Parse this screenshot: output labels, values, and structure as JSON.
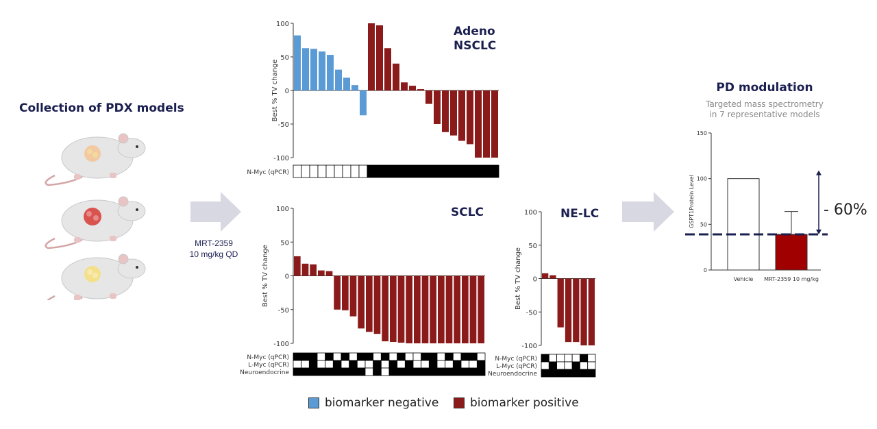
{
  "left": {
    "title": "Collection of PDX models",
    "treatment_line1": "MRT-2359",
    "treatment_line2": "10 mg/kg QD"
  },
  "legend": {
    "negative_label": "biomarker negative",
    "positive_label": "biomarker positive"
  },
  "colors": {
    "negative": "#5b9bd5",
    "positive": "#8b1a1a",
    "pd_bar": "#a00000",
    "arrow": "#d8d8e2",
    "header": "#1b1f4f",
    "dash": "#1b1f4f"
  },
  "pd": {
    "title": "PD modulation",
    "subtitle_line1": "Targeted mass spectrometry",
    "subtitle_line2": "in 7 representative models",
    "reduction_label": "- 60%"
  },
  "chart_data": [
    {
      "id": "adeno",
      "type": "bar",
      "title_line1": "Adeno",
      "title_line2": "NSCLC",
      "ylabel": "Best % TV change",
      "ylim": [
        -100,
        100
      ],
      "yticks": [
        100,
        50,
        0,
        -50,
        -100
      ],
      "ytick_labels": [
        "100",
        "50",
        "0",
        "-50",
        "-100"
      ],
      "values": [
        82,
        63,
        62,
        58,
        53,
        31,
        19,
        8,
        -37,
        100,
        97,
        63,
        40,
        12,
        7,
        2,
        -20,
        -50,
        -62,
        -67,
        -75,
        -80,
        -100,
        -100,
        -100
      ],
      "series_class": [
        "neg",
        "neg",
        "neg",
        "neg",
        "neg",
        "neg",
        "neg",
        "neg",
        "neg",
        "pos",
        "pos",
        "pos",
        "pos",
        "pos",
        "pos",
        "pos",
        "pos",
        "pos",
        "pos",
        "pos",
        "pos",
        "pos",
        "pos",
        "pos",
        "pos"
      ],
      "rows": [
        {
          "label": "N-Myc (qPCR)",
          "cells": [
            0,
            0,
            0,
            0,
            0,
            0,
            0,
            0,
            0,
            1,
            1,
            1,
            1,
            1,
            1,
            1,
            1,
            1,
            1,
            1,
            1,
            1,
            1,
            1,
            1
          ]
        }
      ]
    },
    {
      "id": "sclc",
      "type": "bar",
      "title_line1": "SCLC",
      "ylabel": "Best % TV change",
      "ylim": [
        -100,
        100
      ],
      "yticks": [
        100,
        50,
        0,
        -50,
        -100
      ],
      "ytick_labels": [
        "100",
        "50",
        "0",
        "-50",
        "-100"
      ],
      "values": [
        29,
        18,
        17,
        8,
        7,
        -50,
        -51,
        -60,
        -78,
        -83,
        -86,
        -97,
        -98,
        -99,
        -100,
        -100,
        -100,
        -100,
        -100,
        -100,
        -100,
        -100,
        -100,
        -100
      ],
      "series_class": [
        "pos",
        "pos",
        "pos",
        "pos",
        "pos",
        "pos",
        "pos",
        "pos",
        "pos",
        "pos",
        "pos",
        "pos",
        "pos",
        "pos",
        "pos",
        "pos",
        "pos",
        "pos",
        "pos",
        "pos",
        "pos",
        "pos",
        "pos",
        "pos"
      ],
      "rows": [
        {
          "label": "N-Myc (qPCR)",
          "cells": [
            1,
            1,
            1,
            0,
            1,
            0,
            1,
            0,
            1,
            1,
            0,
            1,
            0,
            1,
            0,
            0,
            1,
            1,
            0,
            1,
            0,
            1,
            1,
            0
          ]
        },
        {
          "label": "L-Myc (qPCR)",
          "cells": [
            0,
            0,
            1,
            0,
            0,
            1,
            0,
            1,
            0,
            0,
            1,
            0,
            1,
            0,
            1,
            0,
            0,
            1,
            0,
            0,
            1,
            0,
            0,
            1
          ]
        },
        {
          "label": "Neuroendocrine",
          "cells": [
            1,
            1,
            1,
            1,
            1,
            1,
            1,
            1,
            1,
            0,
            1,
            0,
            1,
            1,
            1,
            1,
            1,
            1,
            1,
            1,
            1,
            1,
            1,
            1
          ]
        }
      ]
    },
    {
      "id": "nelc",
      "type": "bar",
      "title_line1": "NE-LC",
      "ylabel": "Best % TV change",
      "ylim": [
        -100,
        100
      ],
      "yticks": [
        100,
        50,
        0,
        -50,
        -100
      ],
      "ytick_labels": [
        "100",
        "50",
        "0",
        "-50",
        "-100"
      ],
      "values": [
        8,
        5,
        -73,
        -95,
        -95,
        -100,
        -100
      ],
      "series_class": [
        "pos",
        "pos",
        "pos",
        "pos",
        "pos",
        "pos",
        "pos"
      ],
      "rows": [
        {
          "label": "N-Myc (qPCR)",
          "cells": [
            1,
            0,
            0,
            0,
            0,
            1,
            0
          ]
        },
        {
          "label": "L-Myc (qPCR)",
          "cells": [
            0,
            1,
            0,
            0,
            1,
            0,
            0
          ]
        },
        {
          "label": "Neuroendocrine",
          "cells": [
            1,
            1,
            1,
            1,
            1,
            1,
            1
          ]
        }
      ]
    },
    {
      "id": "pd",
      "type": "bar",
      "ylabel": "GSPT1Protein Level",
      "ylim": [
        0,
        150
      ],
      "yticks": [
        0,
        50,
        100,
        150
      ],
      "ytick_labels": [
        "0",
        "50",
        "100",
        "150"
      ],
      "categories": [
        "Vehicle",
        "MRT-2359 10 mg/kg"
      ],
      "values": [
        100,
        39
      ],
      "error_upper": [
        0,
        64
      ],
      "reference_line": 39
    }
  ]
}
